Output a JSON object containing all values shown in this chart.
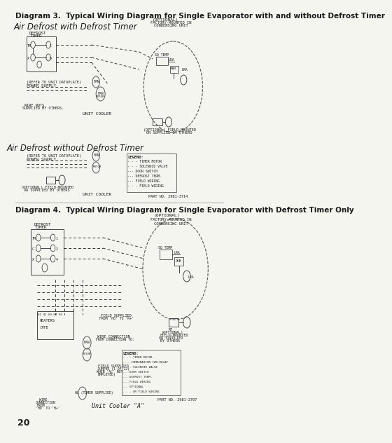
{
  "title3": "Diagram 3.  Typical Wiring Diagram for Single Evaporator with and without Defrost Timer",
  "title4": "Diagram 4.  Typical Wiring Diagram for Single Evaporator with Defrost Timer Only",
  "subtitle3a": "Air Defrost with Defrost Timer",
  "subtitle3b": "Air Defrost without Defrost Timer",
  "subtitle4": "Unit Cooler \"A\"",
  "page_number": "20",
  "part_no3": "PART NO. 2981-3714",
  "part_no4": "PART NO. 2981-3707",
  "bg_color": "#f5f5f0",
  "line_color": "#2a2a2a",
  "dashed_color": "#2a2a2a",
  "box_color": "#d0d0d0",
  "title_fontsize": 7.5,
  "subtitle_fontsize": 8.5,
  "label_fontsize": 5.0,
  "small_fontsize": 4.5
}
